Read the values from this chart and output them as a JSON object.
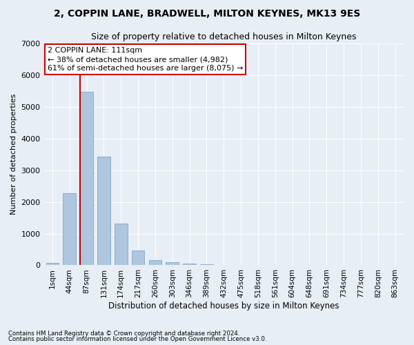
{
  "title": "2, COPPIN LANE, BRADWELL, MILTON KEYNES, MK13 9ES",
  "subtitle": "Size of property relative to detached houses in Milton Keynes",
  "xlabel": "Distribution of detached houses by size in Milton Keynes",
  "ylabel": "Number of detached properties",
  "footnote1": "Contains HM Land Registry data © Crown copyright and database right 2024.",
  "footnote2": "Contains public sector information licensed under the Open Government Licence v3.0.",
  "categories": [
    "1sqm",
    "44sqm",
    "87sqm",
    "131sqm",
    "174sqm",
    "217sqm",
    "260sqm",
    "303sqm",
    "346sqm",
    "389sqm",
    "432sqm",
    "475sqm",
    "518sqm",
    "561sqm",
    "604sqm",
    "648sqm",
    "691sqm",
    "734sqm",
    "777sqm",
    "820sqm",
    "863sqm"
  ],
  "values": [
    80,
    2280,
    5480,
    3430,
    1310,
    470,
    160,
    90,
    55,
    30,
    0,
    0,
    0,
    0,
    0,
    0,
    0,
    0,
    0,
    0,
    0
  ],
  "bar_color": "#aec6de",
  "bar_edge_color": "#88aece",
  "vline_color": "#cc0000",
  "annotation_text": "2 COPPIN LANE: 111sqm\n← 38% of detached houses are smaller (4,982)\n61% of semi-detached houses are larger (8,075) →",
  "annotation_box_color": "#ffffff",
  "annotation_box_edge": "#cc0000",
  "ylim": [
    0,
    7000
  ],
  "yticks": [
    0,
    1000,
    2000,
    3000,
    4000,
    5000,
    6000,
    7000
  ],
  "bg_color": "#e8eef5",
  "grid_color": "#ffffff",
  "title_fontsize": 10,
  "subtitle_fontsize": 9,
  "annot_fontsize": 8,
  "ylabel_fontsize": 8,
  "xlabel_fontsize": 8.5,
  "tick_fontsize": 7.5,
  "ytick_fontsize": 8
}
